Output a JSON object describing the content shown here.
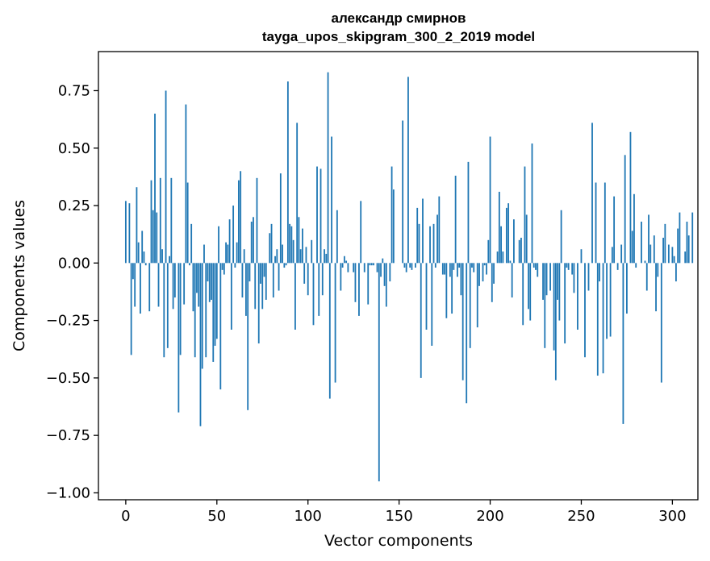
{
  "chart_data": {
    "type": "bar",
    "title": "александр смирнов",
    "subtitle": "tayga_upos_skipgram_300_2_2019 model",
    "xlabel": "Vector components",
    "ylabel": "Components values",
    "xlim": [
      -15,
      314
    ],
    "ylim": [
      -1.03,
      0.92
    ],
    "xticks": [
      0,
      50,
      100,
      150,
      200,
      250,
      300
    ],
    "xtick_labels": [
      "0",
      "50",
      "100",
      "150",
      "200",
      "250",
      "300"
    ],
    "yticks": [
      -1.0,
      -0.75,
      -0.5,
      -0.25,
      0.0,
      0.25,
      0.5,
      0.75
    ],
    "ytick_labels": [
      "−1.00",
      "−0.75",
      "−0.50",
      "−0.25",
      "0.00",
      "0.25",
      "0.50",
      "0.75"
    ],
    "grid": false,
    "bar_color": "#1f77b4",
    "values": [
      0.27,
      0.0,
      0.26,
      -0.4,
      -0.07,
      -0.19,
      0.33,
      0.09,
      -0.22,
      0.14,
      0.05,
      -0.01,
      0.0,
      -0.21,
      0.36,
      0.23,
      0.65,
      0.22,
      -0.19,
      0.37,
      0.06,
      -0.41,
      0.75,
      -0.37,
      0.03,
      0.37,
      -0.2,
      -0.15,
      0.0,
      -0.65,
      -0.4,
      0.0,
      -0.18,
      0.69,
      0.35,
      -0.01,
      0.17,
      -0.21,
      -0.41,
      -0.13,
      -0.19,
      -0.71,
      -0.46,
      0.08,
      -0.41,
      -0.08,
      -0.17,
      -0.16,
      -0.43,
      -0.36,
      -0.33,
      0.16,
      -0.55,
      -0.03,
      -0.05,
      0.09,
      0.08,
      0.19,
      -0.29,
      0.25,
      -0.02,
      0.09,
      0.36,
      0.4,
      -0.15,
      0.06,
      -0.23,
      -0.64,
      -0.08,
      0.18,
      0.2,
      -0.2,
      0.37,
      -0.35,
      -0.09,
      -0.2,
      -0.06,
      -0.16,
      0.0,
      0.13,
      0.17,
      -0.15,
      0.03,
      0.06,
      -0.12,
      0.39,
      0.08,
      -0.02,
      -0.01,
      0.79,
      0.17,
      0.16,
      0.1,
      -0.29,
      0.61,
      0.2,
      0.06,
      0.15,
      -0.09,
      0.07,
      -0.14,
      0.0,
      0.1,
      -0.27,
      0.0,
      0.42,
      -0.23,
      0.41,
      -0.14,
      0.06,
      0.04,
      0.83,
      -0.59,
      0.55,
      0.0,
      -0.52,
      0.23,
      0.0,
      -0.12,
      -0.02,
      0.03,
      0.01,
      -0.04,
      0.0,
      0.0,
      -0.04,
      -0.17,
      0.0,
      -0.23,
      0.27,
      0.0,
      -0.04,
      0.0,
      -0.18,
      -0.01,
      -0.01,
      -0.01,
      0.0,
      -0.04,
      -0.95,
      -0.06,
      0.02,
      -0.1,
      -0.19,
      0.0,
      -0.08,
      0.42,
      0.32,
      0.0,
      0.0,
      0.0,
      0.0,
      0.62,
      -0.02,
      -0.04,
      0.81,
      -0.02,
      -0.03,
      0.0,
      -0.02,
      0.24,
      0.17,
      -0.5,
      0.28,
      0.0,
      -0.29,
      0.0,
      0.16,
      -0.36,
      0.17,
      -0.02,
      0.21,
      0.29,
      0.0,
      -0.05,
      -0.05,
      -0.24,
      0.0,
      -0.06,
      -0.22,
      -0.03,
      0.38,
      -0.06,
      -0.02,
      -0.14,
      -0.51,
      0.0,
      -0.61,
      0.44,
      -0.37,
      -0.02,
      -0.04,
      0.0,
      -0.28,
      -0.1,
      0.0,
      -0.08,
      -0.01,
      -0.05,
      0.1,
      0.55,
      -0.17,
      -0.09,
      0.0,
      0.05,
      0.31,
      0.16,
      0.05,
      0.0,
      0.24,
      0.26,
      0.01,
      -0.15,
      0.19,
      0.0,
      0.0,
      0.1,
      0.11,
      -0.27,
      0.42,
      0.21,
      -0.2,
      -0.25,
      0.52,
      -0.02,
      -0.03,
      -0.06,
      0.0,
      0.0,
      -0.16,
      -0.37,
      -0.14,
      0.0,
      -0.12,
      0.0,
      -0.38,
      -0.51,
      -0.16,
      -0.25,
      0.23,
      0.0,
      -0.35,
      -0.02,
      -0.03,
      0.0,
      -0.05,
      -0.13,
      0.0,
      -0.29,
      0.0,
      0.06,
      0.0,
      -0.41,
      0.0,
      -0.12,
      0.0,
      0.61,
      0.0,
      0.35,
      -0.49,
      -0.08,
      0.0,
      -0.48,
      0.35,
      -0.33,
      0.0,
      -0.32,
      0.07,
      0.29,
      0.0,
      -0.03,
      0.0,
      0.08,
      -0.7,
      0.47,
      -0.22,
      0.0,
      0.57,
      0.14,
      0.3,
      -0.02,
      0.0,
      0.0,
      0.18,
      0.0,
      0.01,
      -0.12,
      0.21,
      0.08,
      0.0,
      0.12,
      -0.21,
      -0.06,
      0.0,
      -0.52,
      0.11,
      0.17,
      0.0,
      0.08,
      0.0,
      0.07,
      0.03,
      -0.08,
      0.15,
      0.22,
      0.0,
      0.0,
      0.05,
      0.18,
      0.12,
      0.0,
      0.22
    ]
  }
}
